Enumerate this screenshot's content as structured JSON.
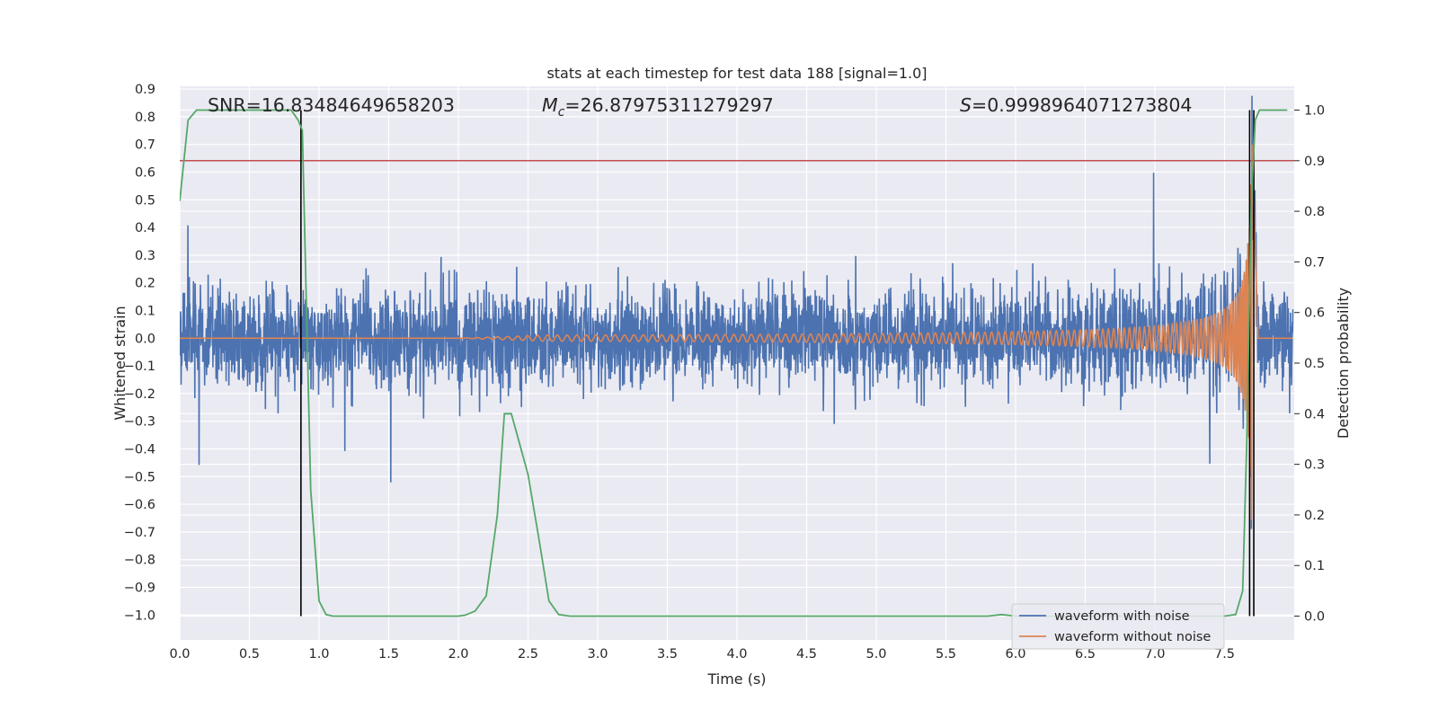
{
  "chart_data": {
    "type": "line",
    "title": "stats at each timestep for test data 188 [signal=1.0]",
    "xlabel": "Time (s)",
    "ylabel": "Whitened strain",
    "y2label": "Detection probability",
    "xlim": [
      0.0,
      8.0
    ],
    "ylim": [
      -1.09,
      0.91
    ],
    "y2lim": [
      -0.047,
      1.047
    ],
    "x_ticks": [
      "0.0",
      "0.5",
      "1.0",
      "1.5",
      "2.0",
      "2.5",
      "3.0",
      "3.5",
      "4.0",
      "4.5",
      "5.0",
      "5.5",
      "6.0",
      "6.5",
      "7.0",
      "7.5"
    ],
    "y_ticks": [
      "0.9",
      "0.8",
      "0.7",
      "0.6",
      "0.5",
      "0.4",
      "0.3",
      "0.2",
      "0.1",
      "0.0",
      "−0.1",
      "−0.2",
      "−0.3",
      "−0.4",
      "−0.5",
      "−0.6",
      "−0.7",
      "−0.8",
      "−0.9",
      "−1.0"
    ],
    "y2_ticks": [
      "1.0",
      "0.9",
      "0.8",
      "0.7",
      "0.6",
      "0.5",
      "0.4",
      "0.3",
      "0.2",
      "0.1",
      "0.0"
    ],
    "annotations": {
      "snr": "SNR=16.83484649658203",
      "mc_symbol": "M",
      "mc_sub": "c",
      "mc_value": "=26.87975311279297",
      "s_symbol": "S",
      "s_value": "=0.9998964071273804"
    },
    "threshold_probability": 0.9,
    "vertical_lines": [
      0.87,
      7.68,
      7.71
    ],
    "series": [
      {
        "name": "waveform with noise",
        "color": "#4c72b0",
        "axis": "left",
        "envelope": {
          "upper_typical": 0.3,
          "lower_typical": -0.25,
          "upper_peak": 0.7,
          "lower_peak": -0.61
        }
      },
      {
        "name": "waveform without noise",
        "color": "#dd8452",
        "axis": "left",
        "chirp": {
          "start_time": 2.0,
          "merger_time": 7.71,
          "end_time": 7.74,
          "peak_amplitude": 0.7
        }
      },
      {
        "name": "Detection probability",
        "color": "#55a868",
        "axis": "right",
        "x": [
          0.0,
          0.06,
          0.12,
          0.2,
          0.35,
          0.5,
          0.65,
          0.8,
          0.85,
          0.88,
          0.94,
          1.0,
          1.05,
          1.1,
          1.15,
          1.5,
          2.0,
          2.05,
          2.12,
          2.2,
          2.28,
          2.33,
          2.38,
          2.43,
          2.5,
          2.58,
          2.65,
          2.72,
          2.8,
          3.5,
          5.0,
          5.8,
          5.9,
          6.0,
          7.5,
          7.58,
          7.63,
          7.66,
          7.69,
          7.72,
          7.75,
          7.82,
          7.95
        ],
        "values": [
          0.82,
          0.98,
          1.0,
          1.0,
          1.0,
          1.0,
          1.0,
          1.0,
          0.98,
          0.96,
          0.25,
          0.03,
          0.003,
          0.0,
          0.0,
          0.0,
          0.0,
          0.002,
          0.01,
          0.04,
          0.2,
          0.4,
          0.4,
          0.35,
          0.28,
          0.15,
          0.03,
          0.003,
          0.0,
          0.0,
          0.0,
          0.0,
          0.003,
          0.0,
          0.0,
          0.003,
          0.05,
          0.35,
          0.8,
          0.98,
          1.0,
          1.0,
          1.0
        ]
      }
    ],
    "legend": {
      "location": "lower right",
      "entries": [
        "waveform with noise",
        "waveform without noise"
      ]
    },
    "colors": {
      "background": "#eaeaf2",
      "grid": "#ffffff",
      "threshold": "#c44e52",
      "vline": "#000000"
    }
  }
}
